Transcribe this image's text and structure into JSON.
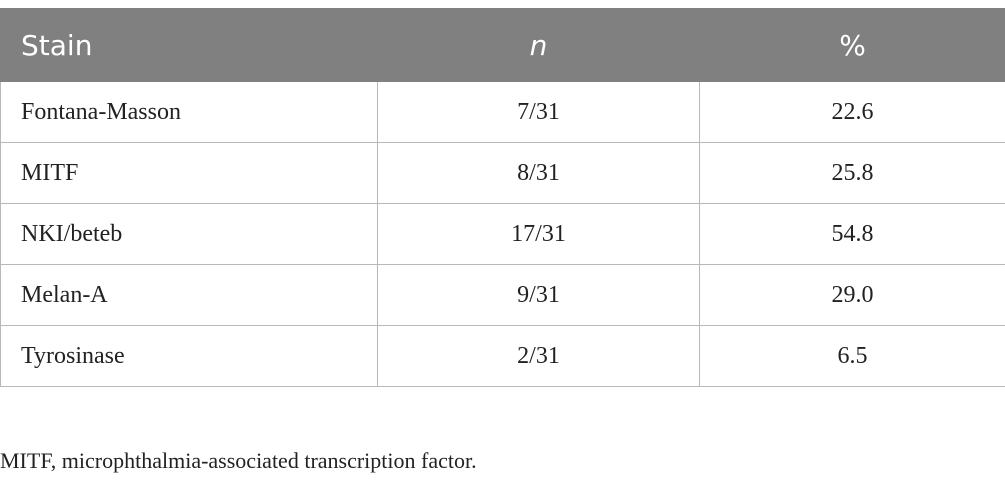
{
  "table": {
    "header": [
      "Stain",
      "n",
      "%"
    ],
    "rows": [
      [
        "Fontana-Masson",
        "7/31",
        "22.6"
      ],
      [
        "MITF",
        "8/31",
        "25.8"
      ],
      [
        "NKI/beteb",
        "17/31",
        "54.8"
      ],
      [
        "Melan-A",
        "9/31",
        "29.0"
      ],
      [
        "Tyrosinase",
        "2/31",
        "6.5"
      ]
    ]
  },
  "footnote": "MITF, microphthalmia-associated transcription factor."
}
